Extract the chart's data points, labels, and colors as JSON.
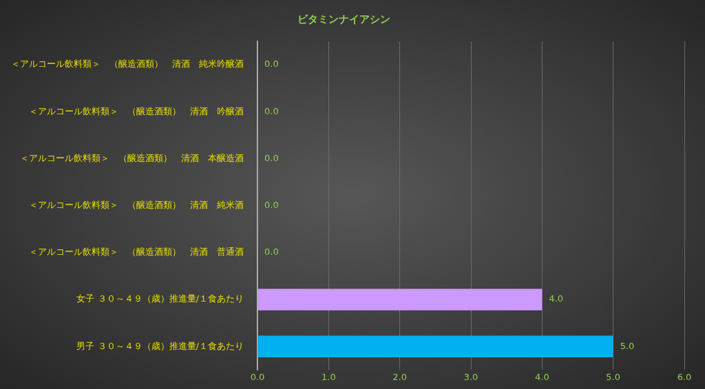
{
  "chart_data": {
    "type": "bar",
    "orientation": "horizontal",
    "title": "ビタミンナイアシン",
    "categories": [
      "＜アルコール飲料類＞　（醸造酒類）　清酒　純米吟醸酒",
      "＜アルコール飲料類＞　（醸造酒類）　清酒　吟醸酒",
      "＜アルコール飲料類＞　（醸造酒類）　清酒　本醸造酒",
      "＜アルコール飲料類＞　（醸造酒類）　清酒　純米酒",
      "＜アルコール飲料類＞　（醸造酒類）　清酒　普通酒",
      "女子 ３０～４９（歳）推進量/１食あたり",
      "男子 ３０～４９（歳）推進量/１食あたり"
    ],
    "values": [
      0,
      0,
      0,
      0,
      0,
      4,
      5
    ],
    "colors": [
      "#00b0f0",
      "#00b0f0",
      "#00b0f0",
      "#00b0f0",
      "#00b0f0",
      "#cc99ff",
      "#00b0f0"
    ],
    "value_labels": [
      "0.0",
      "0.0",
      "0.0",
      "0.0",
      "0.0",
      "4.0",
      "5.0"
    ],
    "xlim": [
      0,
      6
    ],
    "xticks": [
      {
        "value": 0,
        "label": "0.0"
      },
      {
        "value": 1,
        "label": "1.0"
      },
      {
        "value": 2,
        "label": "2.0"
      },
      {
        "value": 3,
        "label": "3.0"
      },
      {
        "value": 4,
        "label": "4.0"
      },
      {
        "value": 5,
        "label": "5.0"
      },
      {
        "value": 6,
        "label": "6.0"
      }
    ],
    "grid": "x",
    "legend": false
  }
}
